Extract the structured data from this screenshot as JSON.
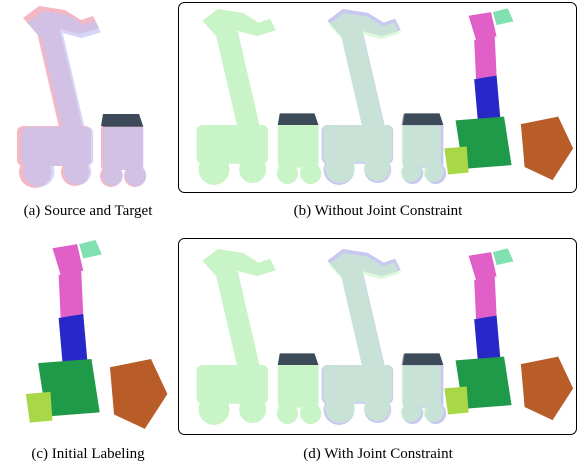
{
  "figure": {
    "panels": [
      {
        "caption": "(a) Source and Target"
      },
      {
        "caption": "(b) Without Joint Constraint"
      },
      {
        "caption": "(c) Initial Labeling"
      },
      {
        "caption": "(d) With Joint Constraint"
      }
    ]
  }
}
